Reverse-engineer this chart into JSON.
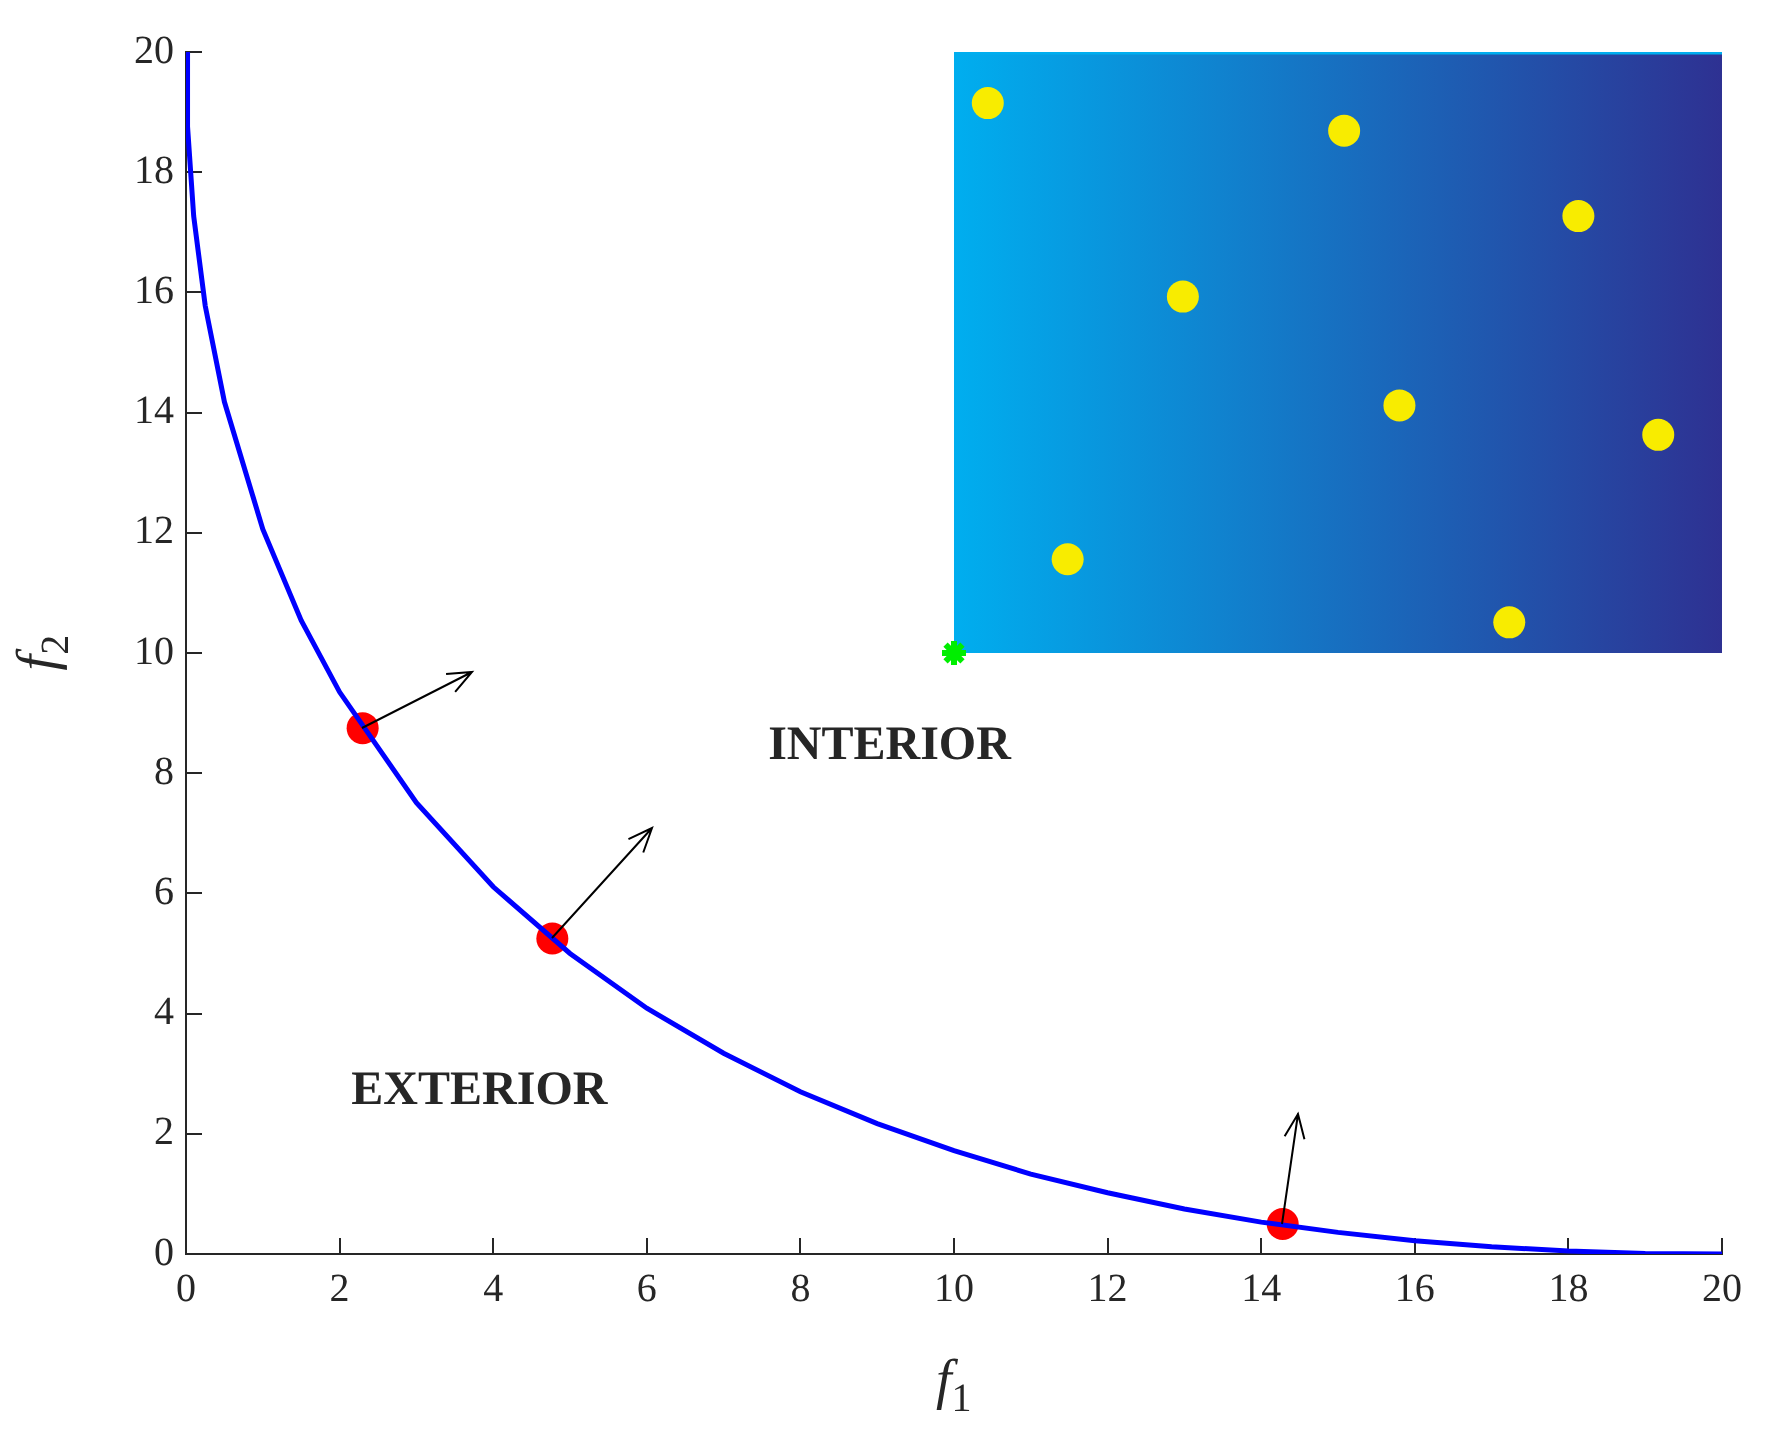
{
  "chart_data": {
    "type": "line",
    "xlabel": "f$_{1}$",
    "ylabel": "f$_{2}$",
    "xlim": [
      0,
      20
    ],
    "ylim": [
      0,
      20
    ],
    "xticks": [
      0,
      2,
      4,
      6,
      8,
      10,
      12,
      14,
      16,
      18,
      20
    ],
    "yticks": [
      0,
      2,
      4,
      6,
      8,
      10,
      12,
      14,
      16,
      18,
      20
    ],
    "grid": false,
    "legend": false,
    "annotations": [
      "INTERIOR",
      "EXTERIOR"
    ],
    "series": [
      {
        "type": "line",
        "color": "#00aeef",
        "colors": [
          "#00aeef",
          "#2e3192"
        ],
        "marker": "none",
        "x": [
          10,
          20
        ],
        "values": [
          20,
          20
        ],
        "lower": [
          10,
          10
        ],
        "upper": [
          20,
          20
        ]
      },
      {
        "color": "#0000ff",
        "marker": "none",
        "x": [
          0,
          0.02,
          0.1,
          0.25,
          0.5,
          1,
          1.5,
          2,
          3,
          4,
          5,
          6,
          7,
          8,
          9,
          10,
          11,
          12,
          13,
          14,
          15,
          16,
          17,
          18,
          19,
          20
        ],
        "values": [
          20,
          18.76,
          17.27,
          15.78,
          14.18,
          12.06,
          10.54,
          9.35,
          7.51,
          6.11,
          5.0,
          4.09,
          3.34,
          2.7,
          2.17,
          1.72,
          1.33,
          1.02,
          0.75,
          0.53,
          0.36,
          0.22,
          0.12,
          0.05,
          0.01,
          0
        ]
      },
      {
        "type": "scatter",
        "color": "#ff0000",
        "marker": "circle",
        "x": [
          2.3,
          4.77,
          14.28
        ],
        "values": [
          8.75,
          5.25,
          0.5
        ]
      },
      {
        "type": "scatter",
        "color": "#f8ec00",
        "marker": "circle",
        "x": [
          10.44,
          15.08,
          18.13,
          12.98,
          15.8,
          19.17,
          11.48,
          17.23
        ],
        "values": [
          19.15,
          18.69,
          17.27,
          15.93,
          14.12,
          13.63,
          11.56,
          10.51
        ]
      },
      {
        "type": "scatter",
        "color": "#00ee00",
        "marker": "cross",
        "x": [
          10
        ],
        "values": [
          10
        ]
      }
    ]
  }
}
